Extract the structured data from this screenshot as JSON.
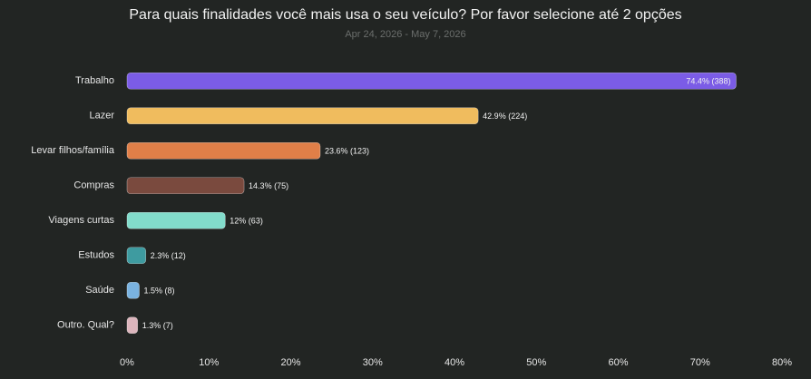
{
  "chart_data": {
    "type": "bar",
    "orientation": "horizontal",
    "title": "Para quais finalidades você mais usa o seu veículo? Por favor selecione até 2 opções",
    "subtitle": "Apr 24, 2026 - May 7, 2026",
    "categories": [
      "Trabalho",
      "Lazer",
      "Levar filhos/família",
      "Compras",
      "Viagens curtas",
      "Estudos",
      "Saúde",
      "Outro. Qual?"
    ],
    "values": [
      74.4,
      42.9,
      23.6,
      14.3,
      12,
      2.3,
      1.5,
      1.3
    ],
    "value_labels": [
      "74.4% (388)",
      "42.9% (224)",
      "23.6% (123)",
      "14.3% (75)",
      "12% (63)",
      "2.3% (12)",
      "1.5% (8)",
      "1.3% (7)"
    ],
    "colors": [
      "#7b5ce6",
      "#f0bc5e",
      "#e07f48",
      "#7a4a3e",
      "#82dccb",
      "#3e9ba0",
      "#7ab3e0",
      "#dcb5bc"
    ],
    "xlim": [
      0,
      80
    ],
    "xticks": [
      {
        "value": 0,
        "label": "0%"
      },
      {
        "value": 10,
        "label": "10%"
      },
      {
        "value": 20,
        "label": "20%"
      },
      {
        "value": 30,
        "label": "30%"
      },
      {
        "value": 40,
        "label": "40%"
      },
      {
        "value": 50,
        "label": "50%"
      },
      {
        "value": 60,
        "label": "60%"
      },
      {
        "value": 70,
        "label": "70%"
      },
      {
        "value": 80,
        "label": "80%"
      }
    ],
    "grid": false
  }
}
